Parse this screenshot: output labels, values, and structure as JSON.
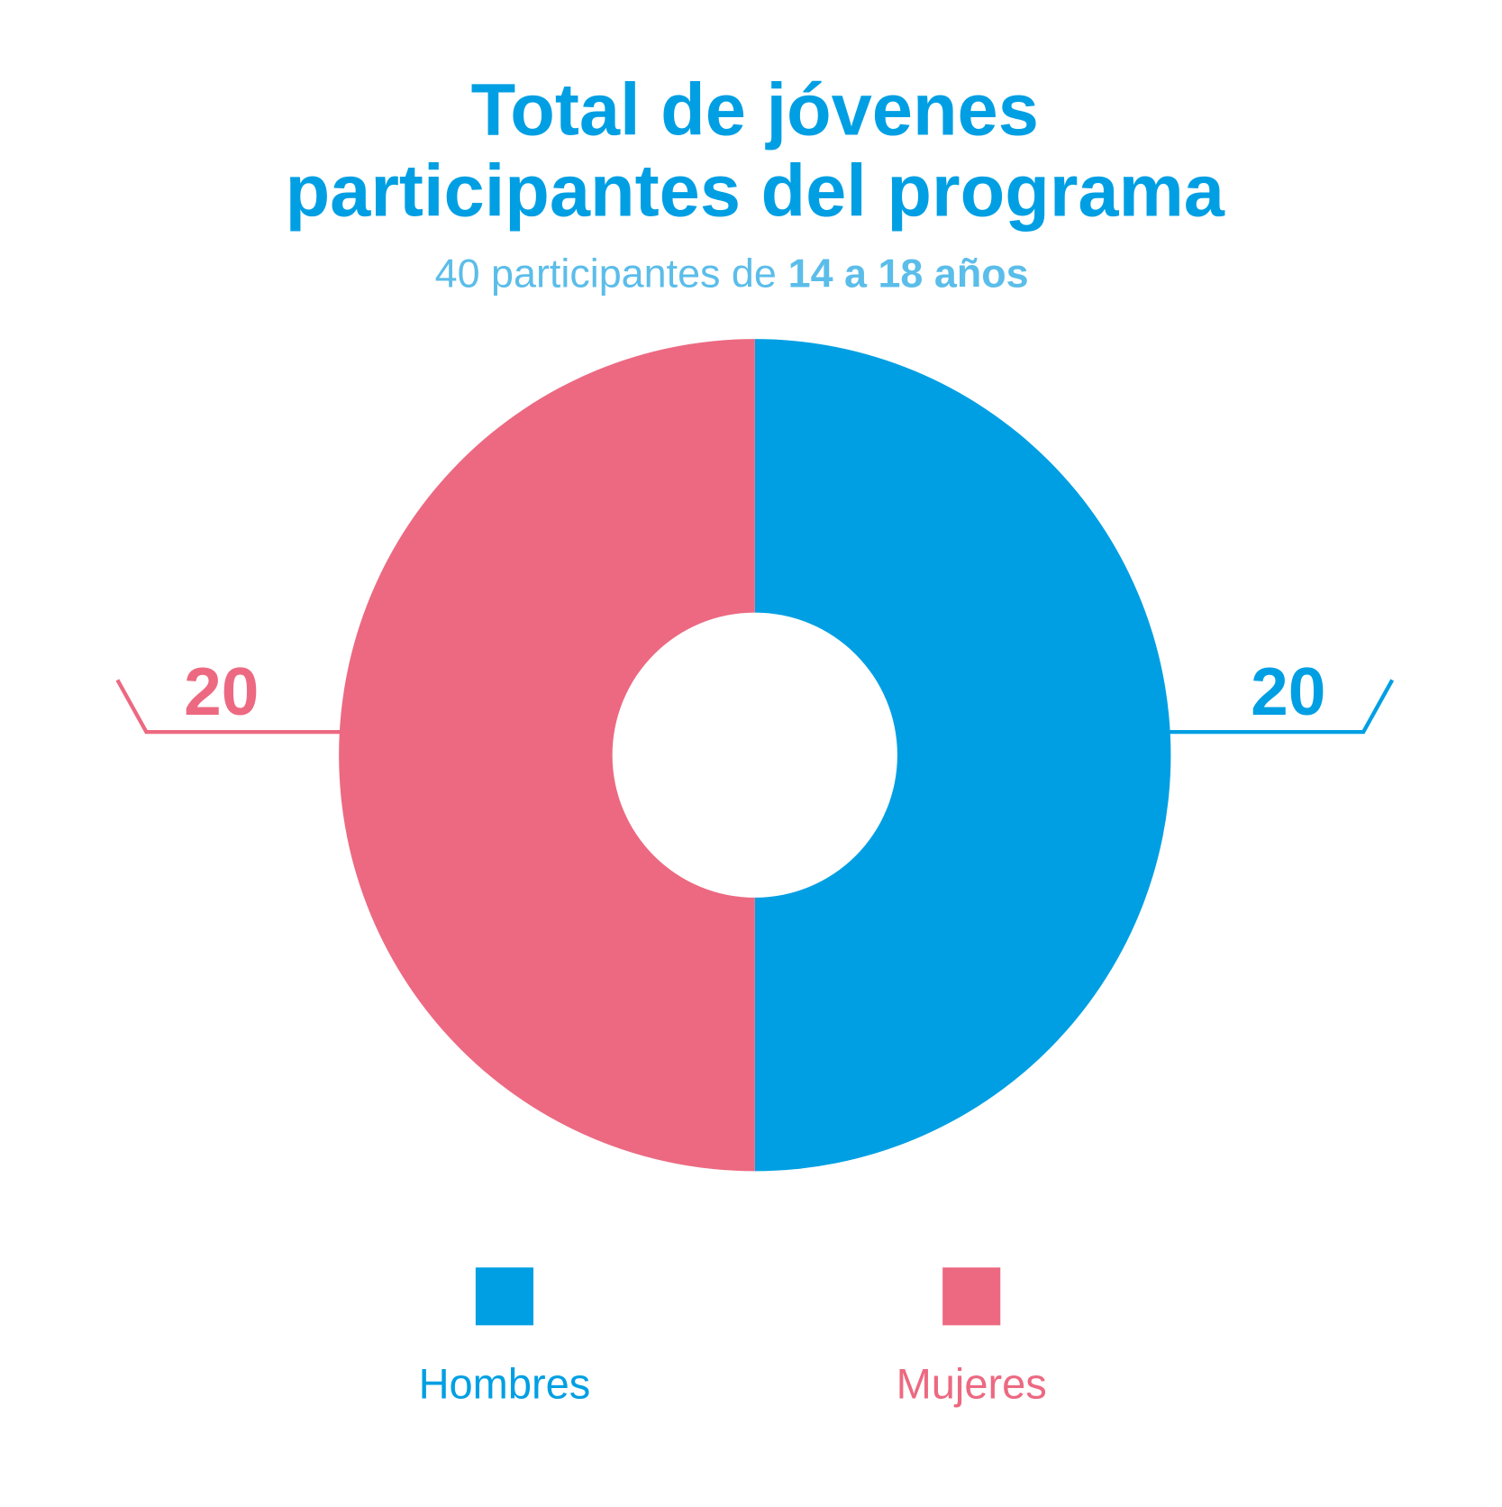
{
  "chart_data": {
    "type": "donut",
    "title": [
      "Total de jóvenes",
      "participantes del programa"
    ],
    "subtitle": {
      "text": "40 participantes de",
      "emphasis": "14 a 18 años"
    },
    "categories": [
      "Hombres",
      "Mujeres"
    ],
    "values": [
      20,
      20
    ],
    "colors": [
      "#009fe3",
      "#ec6981"
    ]
  }
}
